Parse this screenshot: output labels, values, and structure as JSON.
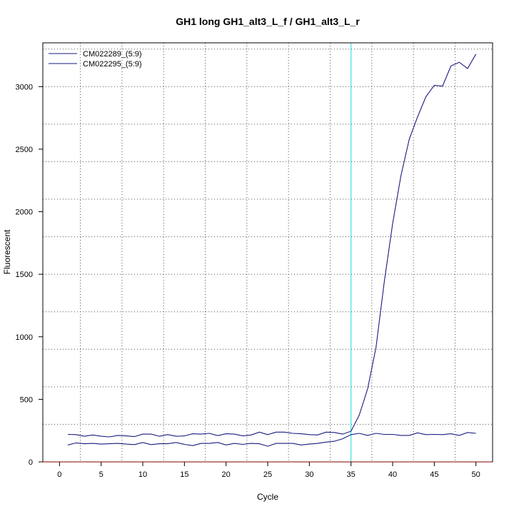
{
  "chart_data": {
    "type": "line",
    "title": "GH1 long GH1_alt3_L_f / GH1_alt3_L_r",
    "xlabel": "Cycle",
    "ylabel": "Fluorescent",
    "xlim": [
      -2,
      52
    ],
    "ylim": [
      0,
      3350
    ],
    "x_ticks": [
      0,
      5,
      10,
      15,
      20,
      25,
      30,
      35,
      40,
      45,
      50
    ],
    "y_ticks": [
      0,
      500,
      1000,
      1500,
      2000,
      2500,
      3000
    ],
    "x_grid": [
      2.5,
      7.5,
      12.5,
      17.5,
      22.5,
      27.5,
      32.5,
      37.5,
      42.5,
      47.5
    ],
    "y_grid": [
      300,
      600,
      900,
      1200,
      1500,
      1800,
      2100,
      2400,
      2700,
      3000,
      3300
    ],
    "grid": true,
    "legend_position": "top-left",
    "threshold_cycle": 35,
    "threshold_color": "#40e0e0",
    "series_color": "#1a1a80",
    "x": [
      1,
      2,
      3,
      4,
      5,
      6,
      7,
      8,
      9,
      10,
      11,
      12,
      13,
      14,
      15,
      16,
      17,
      18,
      19,
      20,
      21,
      22,
      23,
      24,
      25,
      26,
      27,
      28,
      29,
      30,
      31,
      32,
      33,
      34,
      35,
      36,
      37,
      38,
      39,
      40,
      41,
      42,
      43,
      44,
      45,
      46,
      47,
      48,
      49,
      50
    ],
    "series": [
      {
        "name": "CM022289_(5:9)",
        "values": [
          220,
          218,
          205,
          215,
          205,
          200,
          212,
          208,
          202,
          222,
          222,
          205,
          218,
          205,
          208,
          225,
          222,
          228,
          210,
          225,
          222,
          208,
          215,
          238,
          218,
          238,
          238,
          228,
          225,
          218,
          215,
          238,
          235,
          222,
          245,
          375,
          585,
          915,
          1440,
          1905,
          2290,
          2580,
          2760,
          2920,
          3010,
          3005,
          3165,
          3195,
          3145,
          3260
        ]
      },
      {
        "name": "CM022295_(5:9)",
        "values": [
          135,
          152,
          145,
          148,
          142,
          145,
          148,
          142,
          138,
          155,
          138,
          145,
          145,
          155,
          140,
          130,
          148,
          148,
          155,
          135,
          148,
          140,
          148,
          145,
          125,
          148,
          148,
          148,
          135,
          142,
          148,
          158,
          165,
          185,
          218,
          228,
          212,
          228,
          220,
          220,
          212,
          212,
          232,
          218,
          220,
          218,
          225,
          212,
          235,
          228
        ]
      }
    ]
  }
}
